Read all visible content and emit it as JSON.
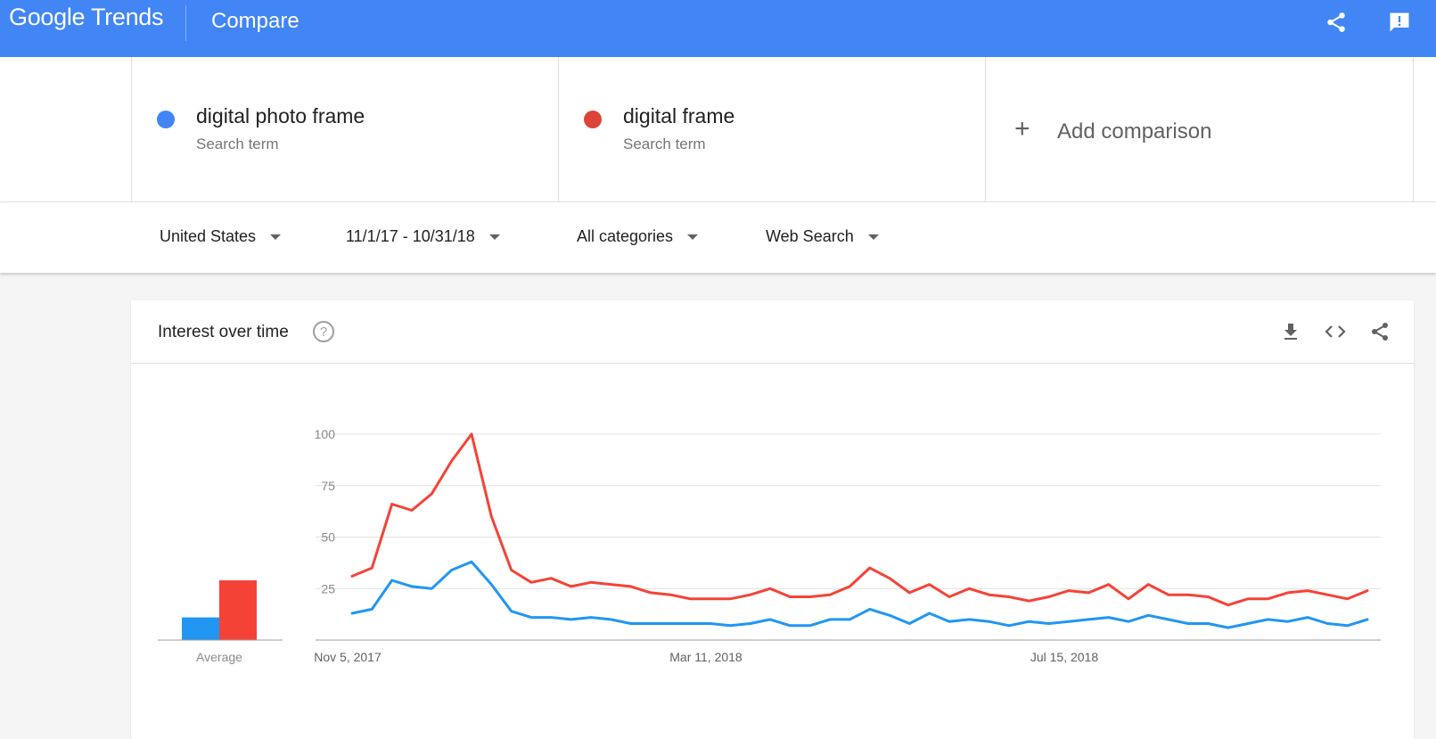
{
  "header": {
    "logo": "Google Trends",
    "title": "Compare",
    "share_icon": "share-icon",
    "feedback_icon": "feedback-icon"
  },
  "terms": [
    {
      "name": "digital photo frame",
      "type": "Search term",
      "color": "#4285f4"
    },
    {
      "name": "digital frame",
      "type": "Search term",
      "color": "#db4437"
    }
  ],
  "add_comparison": {
    "label": "Add comparison",
    "icon": "plus-icon"
  },
  "filters": {
    "region": "United States",
    "date_range": "11/1/17 - 10/31/18",
    "category": "All categories",
    "search_type": "Web Search"
  },
  "card": {
    "title": "Interest over time",
    "help_icon": "help-icon",
    "download_icon": "download-icon",
    "embed_icon": "embed-icon",
    "share_icon": "share-icon"
  },
  "chart_data": {
    "type": "line",
    "title": "",
    "xlabel": "",
    "ylabel": "",
    "ylim": [
      0,
      100
    ],
    "yticks": [
      25,
      50,
      75,
      100
    ],
    "grid": true,
    "x_tick_labels": [
      {
        "label": "Nov 5, 2017",
        "index": 0
      },
      {
        "label": "Mar 11, 2018",
        "index": 18
      },
      {
        "label": "Jul 15, 2018",
        "index": 36
      }
    ],
    "average_label": "Average",
    "series": [
      {
        "name": "digital photo frame",
        "color": "#2196f3",
        "average": 11,
        "values": [
          13,
          15,
          29,
          26,
          25,
          34,
          38,
          27,
          14,
          11,
          11,
          10,
          11,
          10,
          8,
          8,
          8,
          8,
          8,
          7,
          8,
          10,
          7,
          7,
          10,
          10,
          15,
          12,
          8,
          13,
          9,
          10,
          9,
          7,
          9,
          8,
          9,
          10,
          11,
          9,
          12,
          10,
          8,
          8,
          6,
          8,
          10,
          9,
          11,
          8,
          7,
          10
        ]
      },
      {
        "name": "digital frame",
        "color": "#f44336",
        "average": 29,
        "values": [
          31,
          35,
          66,
          63,
          71,
          87,
          100,
          60,
          34,
          28,
          30,
          26,
          28,
          27,
          26,
          23,
          22,
          20,
          20,
          20,
          22,
          25,
          21,
          21,
          22,
          26,
          35,
          30,
          23,
          27,
          21,
          25,
          22,
          21,
          19,
          21,
          24,
          23,
          27,
          20,
          27,
          22,
          22,
          21,
          17,
          20,
          20,
          23,
          24,
          22,
          20,
          24
        ]
      }
    ]
  }
}
